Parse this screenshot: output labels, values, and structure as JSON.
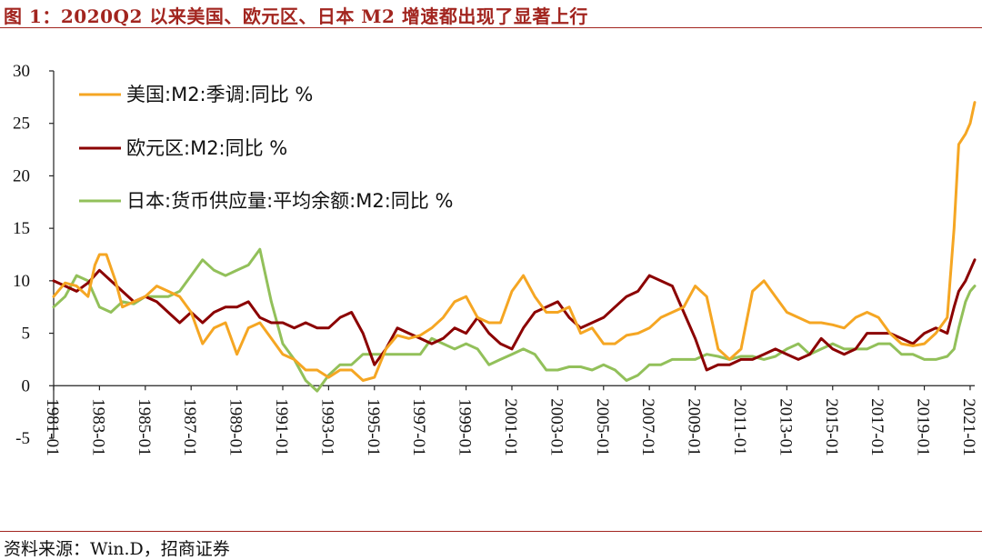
{
  "header": {
    "title": "图 1：2020Q2 以来美国、欧元区、日本 M2 增速都出现了显著上行"
  },
  "footer": {
    "source": "资料来源：Win.D，招商证券"
  },
  "chart_data": {
    "type": "line",
    "ylim": [
      -5,
      30
    ],
    "yticks": [
      -5,
      0,
      5,
      10,
      15,
      20,
      25,
      30
    ],
    "xlim": [
      1981.0,
      2021.2
    ],
    "xticks": [
      "1981-01",
      "1983-01",
      "1985-01",
      "1987-01",
      "1989-01",
      "1991-01",
      "1993-01",
      "1995-01",
      "1997-01",
      "1999-01",
      "2001-01",
      "2003-01",
      "2005-01",
      "2007-01",
      "2009-01",
      "2011-01",
      "2013-01",
      "2015-01",
      "2017-01",
      "2019-01",
      "2021-01"
    ],
    "legend_position": "top-left",
    "series": [
      {
        "name": "美国:M2:季调:同比 %",
        "color": "#f5a623",
        "x": [
          1981.0,
          1981.5,
          1982.0,
          1982.5,
          1982.8,
          1983.0,
          1983.3,
          1983.7,
          1984.0,
          1984.5,
          1985.0,
          1985.5,
          1986.0,
          1986.5,
          1987.0,
          1987.5,
          1988.0,
          1988.5,
          1989.0,
          1989.5,
          1990.0,
          1990.5,
          1991.0,
          1991.5,
          1992.0,
          1992.5,
          1993.0,
          1993.5,
          1994.0,
          1994.5,
          1995.0,
          1995.5,
          1996.0,
          1996.5,
          1997.0,
          1997.5,
          1998.0,
          1998.5,
          1999.0,
          1999.5,
          2000.0,
          2000.5,
          2001.0,
          2001.5,
          2002.0,
          2002.5,
          2003.0,
          2003.5,
          2004.0,
          2004.5,
          2005.0,
          2005.5,
          2006.0,
          2006.5,
          2007.0,
          2007.5,
          2008.0,
          2008.5,
          2009.0,
          2009.5,
          2010.0,
          2010.5,
          2011.0,
          2011.5,
          2012.0,
          2012.5,
          2013.0,
          2013.5,
          2014.0,
          2014.5,
          2015.0,
          2015.5,
          2016.0,
          2016.5,
          2017.0,
          2017.5,
          2018.0,
          2018.5,
          2019.0,
          2019.5,
          2020.0,
          2020.3,
          2020.5,
          2020.8,
          2021.0,
          2021.2
        ],
        "values": [
          8.5,
          9.8,
          9.5,
          8.5,
          11.5,
          12.5,
          12.5,
          10.0,
          7.5,
          8.0,
          8.5,
          9.5,
          9.0,
          8.5,
          7.0,
          4.0,
          5.5,
          6.0,
          3.0,
          5.5,
          6.0,
          4.5,
          3.0,
          2.5,
          1.5,
          1.5,
          0.8,
          1.5,
          1.5,
          0.5,
          0.8,
          3.5,
          4.8,
          4.5,
          4.8,
          5.5,
          6.5,
          8.0,
          8.5,
          6.5,
          6.0,
          6.0,
          9.0,
          10.5,
          8.5,
          7.0,
          7.0,
          7.5,
          5.0,
          5.5,
          4.0,
          4.0,
          4.8,
          5.0,
          5.5,
          6.5,
          7.0,
          7.5,
          9.5,
          8.5,
          3.5,
          2.5,
          3.5,
          9.0,
          10.0,
          8.5,
          7.0,
          6.5,
          6.0,
          6.0,
          5.8,
          5.5,
          6.5,
          7.0,
          6.5,
          5.0,
          4.0,
          3.8,
          4.0,
          5.0,
          6.5,
          15.0,
          23.0,
          24.0,
          25.0,
          27.0
        ]
      },
      {
        "name": "欧元区:M2:同比 %",
        "color": "#8b0000",
        "x": [
          1981.0,
          1981.5,
          1982.0,
          1982.5,
          1983.0,
          1983.5,
          1984.0,
          1984.5,
          1985.0,
          1985.5,
          1986.0,
          1986.5,
          1987.0,
          1987.5,
          1988.0,
          1988.5,
          1989.0,
          1989.5,
          1990.0,
          1990.5,
          1991.0,
          1991.5,
          1992.0,
          1992.5,
          1993.0,
          1993.5,
          1994.0,
          1994.5,
          1995.0,
          1995.5,
          1996.0,
          1996.5,
          1997.0,
          1997.5,
          1998.0,
          1998.5,
          1999.0,
          1999.5,
          2000.0,
          2000.5,
          2001.0,
          2001.5,
          2002.0,
          2002.5,
          2003.0,
          2003.5,
          2004.0,
          2004.5,
          2005.0,
          2005.5,
          2006.0,
          2006.5,
          2007.0,
          2007.5,
          2008.0,
          2008.5,
          2009.0,
          2009.5,
          2010.0,
          2010.5,
          2011.0,
          2011.5,
          2012.0,
          2012.5,
          2013.0,
          2013.5,
          2014.0,
          2014.5,
          2015.0,
          2015.5,
          2016.0,
          2016.5,
          2017.0,
          2017.5,
          2018.0,
          2018.5,
          2019.0,
          2019.5,
          2020.0,
          2020.3,
          2020.5,
          2020.8,
          2021.0,
          2021.2
        ],
        "values": [
          10.0,
          9.5,
          9.0,
          9.8,
          11.0,
          10.0,
          9.0,
          8.0,
          8.5,
          8.0,
          7.0,
          6.0,
          7.0,
          6.0,
          7.0,
          7.5,
          7.5,
          8.0,
          6.5,
          6.0,
          6.0,
          5.5,
          6.0,
          5.5,
          5.5,
          6.5,
          7.0,
          5.0,
          2.0,
          3.5,
          5.5,
          5.0,
          4.5,
          4.0,
          4.5,
          5.5,
          5.0,
          6.5,
          5.0,
          4.0,
          3.5,
          5.5,
          7.0,
          7.5,
          8.0,
          6.5,
          5.5,
          6.0,
          6.5,
          7.5,
          8.5,
          9.0,
          10.5,
          10.0,
          9.5,
          7.0,
          4.5,
          1.5,
          2.0,
          2.0,
          2.5,
          2.5,
          3.0,
          3.5,
          3.0,
          2.5,
          3.0,
          4.5,
          3.5,
          3.0,
          3.5,
          5.0,
          5.0,
          5.0,
          4.5,
          4.0,
          5.0,
          5.5,
          5.0,
          7.5,
          9.0,
          10.0,
          11.0,
          12.0
        ]
      },
      {
        "name": "日本:货币供应量:平均余额:M2:同比 %",
        "color": "#92c05a",
        "x": [
          1981.0,
          1981.5,
          1982.0,
          1982.5,
          1983.0,
          1983.5,
          1984.0,
          1984.5,
          1985.0,
          1985.5,
          1986.0,
          1986.5,
          1987.0,
          1987.5,
          1988.0,
          1988.5,
          1989.0,
          1989.5,
          1990.0,
          1990.5,
          1991.0,
          1991.5,
          1992.0,
          1992.5,
          1993.0,
          1993.5,
          1994.0,
          1994.5,
          1995.0,
          1995.5,
          1996.0,
          1996.5,
          1997.0,
          1997.5,
          1998.0,
          1998.5,
          1999.0,
          1999.5,
          2000.0,
          2000.5,
          2001.0,
          2001.5,
          2002.0,
          2002.5,
          2003.0,
          2003.5,
          2004.0,
          2004.5,
          2005.0,
          2005.5,
          2006.0,
          2006.5,
          2007.0,
          2007.5,
          2008.0,
          2008.5,
          2009.0,
          2009.5,
          2010.0,
          2010.5,
          2011.0,
          2011.5,
          2012.0,
          2012.5,
          2013.0,
          2013.5,
          2014.0,
          2014.5,
          2015.0,
          2015.5,
          2016.0,
          2016.5,
          2017.0,
          2017.5,
          2018.0,
          2018.5,
          2019.0,
          2019.5,
          2020.0,
          2020.3,
          2020.5,
          2020.8,
          2021.0,
          2021.2
        ],
        "values": [
          7.5,
          8.5,
          10.5,
          10.0,
          7.5,
          7.0,
          8.0,
          7.8,
          8.5,
          8.5,
          8.5,
          9.0,
          10.5,
          12.0,
          11.0,
          10.5,
          11.0,
          11.5,
          13.0,
          8.0,
          4.0,
          2.5,
          0.5,
          -0.5,
          1.0,
          2.0,
          2.0,
          3.0,
          3.0,
          3.0,
          3.0,
          3.0,
          3.0,
          4.5,
          4.0,
          3.5,
          4.0,
          3.5,
          2.0,
          2.5,
          3.0,
          3.5,
          3.0,
          1.5,
          1.5,
          1.8,
          1.8,
          1.5,
          2.0,
          1.5,
          0.5,
          1.0,
          2.0,
          2.0,
          2.5,
          2.5,
          2.5,
          3.0,
          2.8,
          2.5,
          2.8,
          2.8,
          2.5,
          2.8,
          3.5,
          4.0,
          3.0,
          3.5,
          4.0,
          3.5,
          3.5,
          3.5,
          4.0,
          4.0,
          3.0,
          3.0,
          2.5,
          2.5,
          2.8,
          3.5,
          5.5,
          8.0,
          9.0,
          9.5
        ]
      }
    ]
  }
}
